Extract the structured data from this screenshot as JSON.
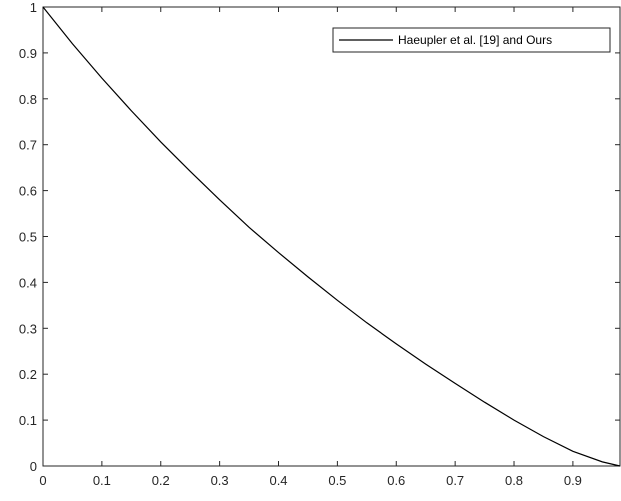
{
  "chart_data": {
    "type": "line",
    "title": "",
    "xlabel": "",
    "ylabel": "",
    "xlim": [
      0,
      0.98
    ],
    "ylim": [
      0,
      1
    ],
    "xticks": [
      "0",
      "0.1",
      "0.2",
      "0.3",
      "0.4",
      "0.5",
      "0.6",
      "0.7",
      "0.8",
      "0.9"
    ],
    "yticks": [
      "0",
      "0.1",
      "0.2",
      "0.3",
      "0.4",
      "0.5",
      "0.6",
      "0.7",
      "0.8",
      "0.9",
      "1"
    ],
    "grid": false,
    "legend_position": "top-right",
    "series": [
      {
        "name": "Haeupler et al. [19] and Ours",
        "color": "#000000",
        "x": [
          0,
          0.05,
          0.1,
          0.15,
          0.2,
          0.25,
          0.3,
          0.35,
          0.4,
          0.45,
          0.5,
          0.55,
          0.6,
          0.65,
          0.7,
          0.75,
          0.8,
          0.85,
          0.9,
          0.95,
          0.98
        ],
        "y": [
          1,
          0.92,
          0.845,
          0.774,
          0.706,
          0.642,
          0.58,
          0.52,
          0.465,
          0.412,
          0.361,
          0.312,
          0.266,
          0.222,
          0.18,
          0.139,
          0.1,
          0.064,
          0.032,
          0.009,
          0
        ]
      }
    ]
  }
}
